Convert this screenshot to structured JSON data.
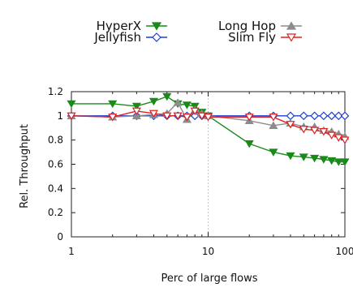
{
  "chart_data": {
    "type": "line",
    "title": "",
    "xlabel": "Perc of large flows",
    "ylabel": "Rel. Throughput",
    "xscale": "log",
    "xlim": [
      1,
      100
    ],
    "ylim": [
      0,
      1.2
    ],
    "x_ticks": [
      1,
      10,
      100
    ],
    "x_tick_labels": [
      "1",
      "10",
      "100"
    ],
    "y_ticks": [
      0,
      0.2,
      0.4,
      0.6,
      0.8,
      1,
      1.2
    ],
    "y_tick_labels": [
      "0",
      "0.2",
      "0.4",
      "0.6",
      "0.8",
      "1",
      "1.2"
    ],
    "grid": "vertical major lines",
    "legend_position": "top, above plot",
    "x": [
      1,
      2,
      3,
      4,
      5,
      6,
      7,
      8,
      9,
      10,
      20,
      30,
      40,
      50,
      60,
      70,
      80,
      90,
      100
    ],
    "series": [
      {
        "name": "HyperX",
        "color": "#1a8a1a",
        "marker": "triangle-down-filled",
        "values": [
          1.1,
          1.1,
          1.08,
          1.12,
          1.16,
          1.1,
          1.09,
          1.08,
          1.03,
          1.0,
          0.77,
          0.7,
          0.67,
          0.66,
          0.65,
          0.64,
          0.63,
          0.62,
          0.62
        ]
      },
      {
        "name": "Jellyfish",
        "color": "#1f3fd0",
        "marker": "diamond-open",
        "values": [
          1.0,
          1.0,
          1.0,
          1.0,
          1.0,
          1.0,
          1.0,
          1.0,
          1.0,
          1.0,
          1.0,
          1.0,
          1.0,
          1.0,
          1.0,
          1.0,
          1.0,
          1.0,
          1.0
        ]
      },
      {
        "name": "Long Hop",
        "color": "#8c8c8c",
        "marker": "triangle-up-filled",
        "values": [
          1.0,
          0.99,
          1.0,
          1.01,
          1.02,
          1.11,
          0.97,
          1.05,
          1.02,
          1.0,
          0.96,
          0.92,
          0.94,
          0.91,
          0.91,
          0.88,
          0.87,
          0.85,
          0.83
        ]
      },
      {
        "name": "Slim Fly",
        "color": "#e02020",
        "marker": "triangle-down-open",
        "values": [
          1.0,
          0.99,
          1.04,
          1.02,
          1.0,
          1.0,
          0.99,
          1.04,
          1.0,
          0.99,
          0.99,
          0.99,
          0.93,
          0.89,
          0.88,
          0.87,
          0.84,
          0.82,
          0.8
        ]
      }
    ]
  }
}
